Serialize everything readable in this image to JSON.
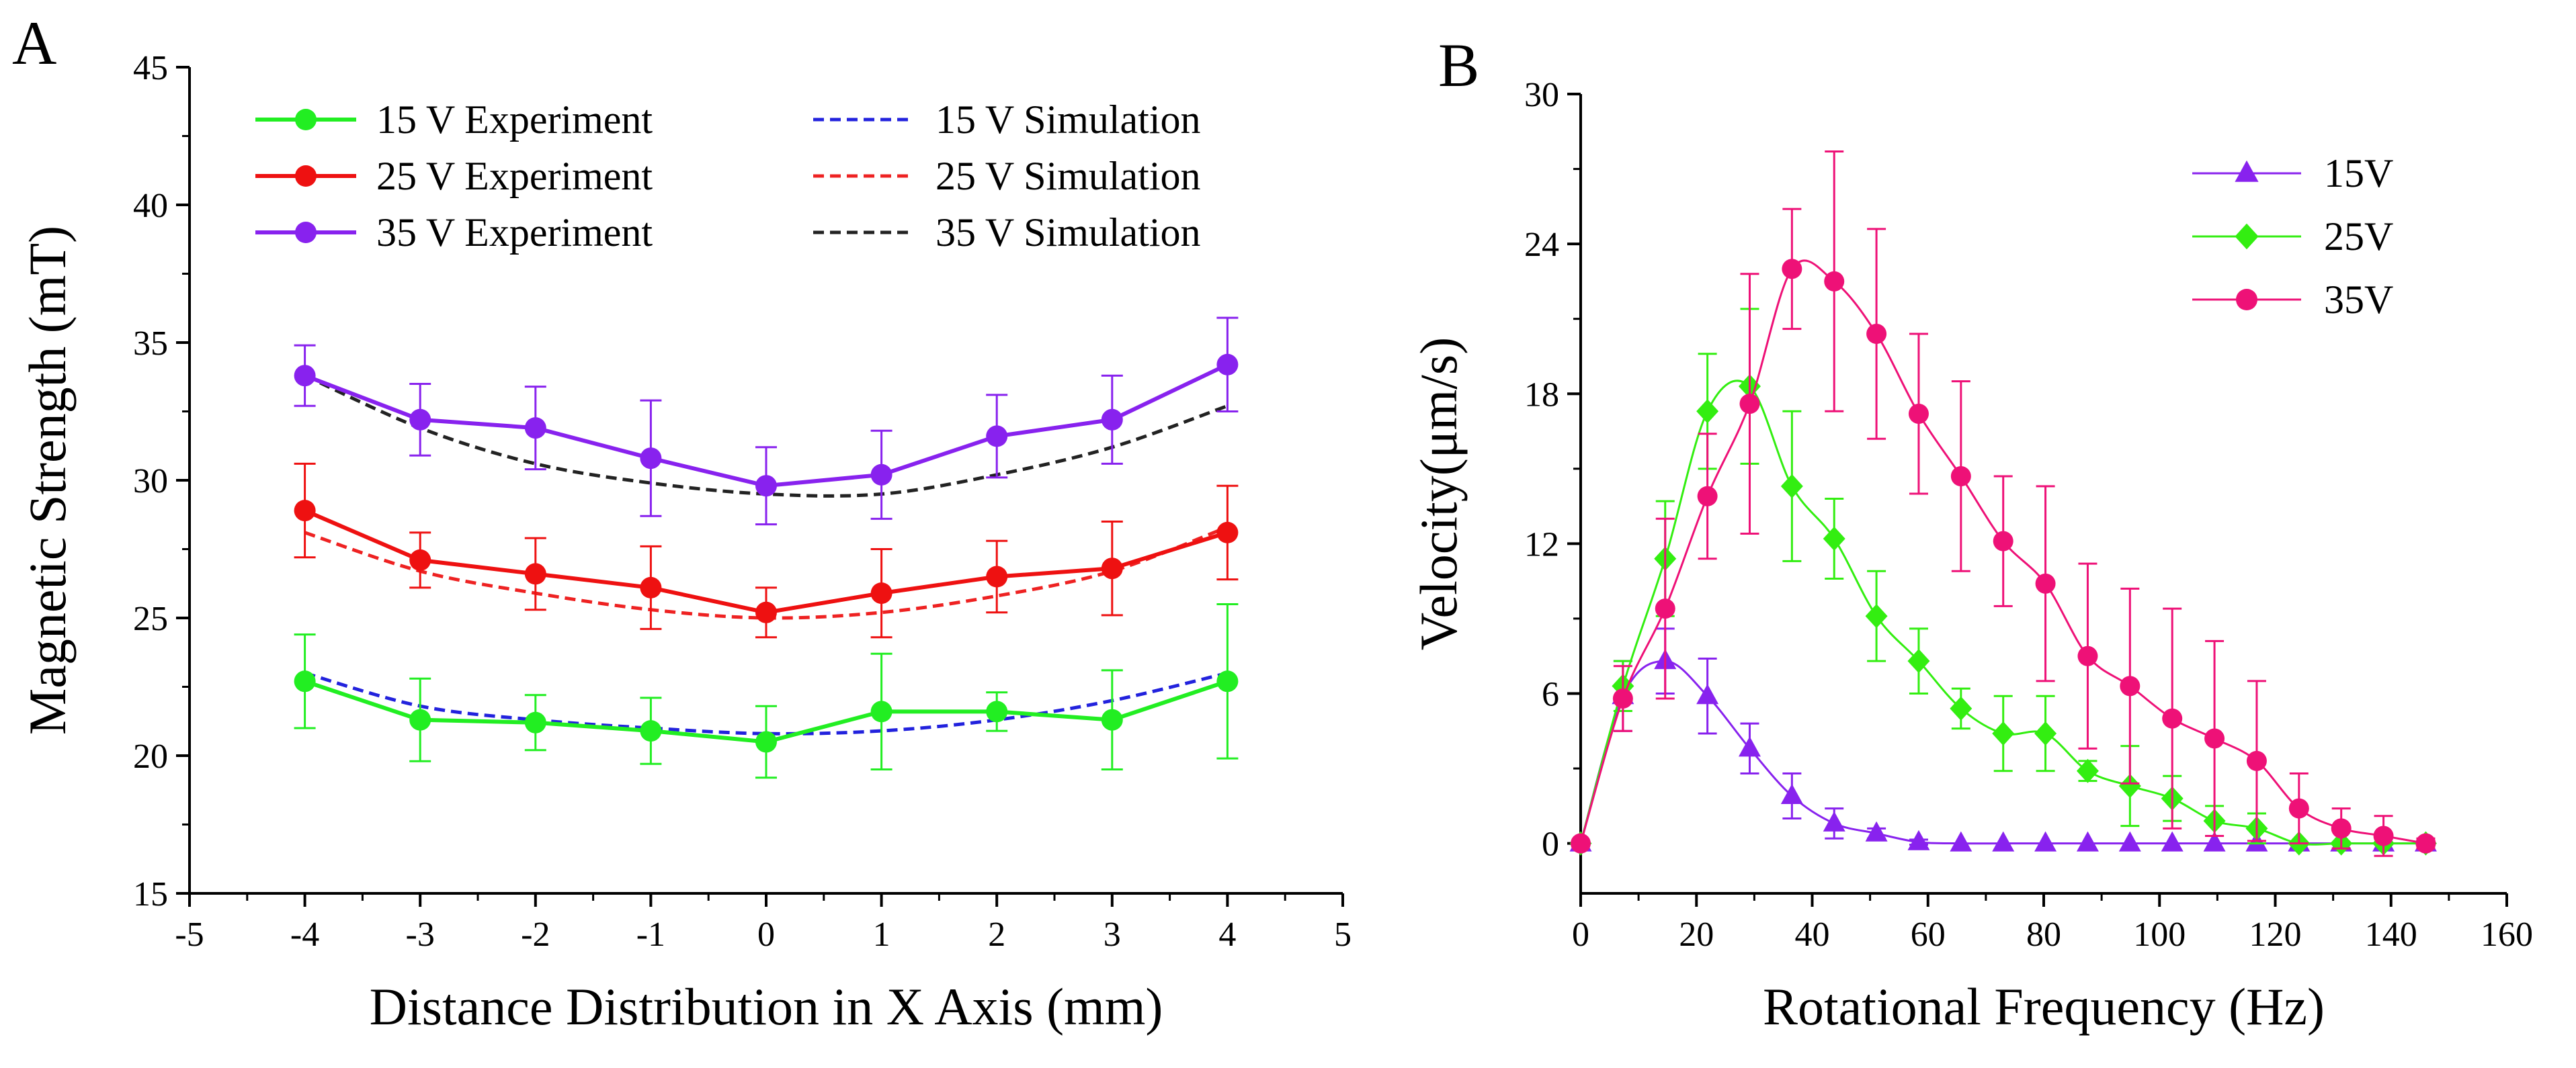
{
  "chart_data": [
    {
      "panel_label": "A",
      "type": "line",
      "title": "",
      "xlabel": "Distance Distribution in X Axis (mm)",
      "ylabel": "Magnetic Strength (mT)",
      "xlim": [
        -5,
        5
      ],
      "ylim": [
        15,
        45
      ],
      "xticks": [
        -5,
        -4,
        -3,
        -2,
        -1,
        0,
        1,
        2,
        3,
        4,
        5
      ],
      "yticks": [
        15,
        20,
        25,
        30,
        35,
        40,
        45
      ],
      "x": [
        -4,
        -3,
        -2,
        -1,
        0,
        1,
        2,
        3,
        4
      ],
      "legend_position": "top",
      "series": [
        {
          "name": "15 V Experiment",
          "style": "solid-marker",
          "color": "#22ee22",
          "marker": "circle",
          "values": [
            22.7,
            21.3,
            21.2,
            20.9,
            20.5,
            21.6,
            21.6,
            21.3,
            22.7
          ],
          "errors": [
            1.7,
            1.5,
            1.0,
            1.2,
            1.3,
            2.1,
            0.7,
            1.8,
            2.8
          ]
        },
        {
          "name": "25 V Experiment",
          "style": "solid-marker",
          "color": "#ee1111",
          "marker": "circle",
          "values": [
            28.9,
            27.1,
            26.6,
            26.1,
            25.2,
            25.9,
            26.5,
            26.8,
            28.1
          ],
          "errors": [
            1.7,
            1.0,
            1.3,
            1.5,
            0.9,
            1.6,
            1.3,
            1.7,
            1.7
          ]
        },
        {
          "name": "35 V Experiment",
          "style": "solid-marker",
          "color": "#8822ee",
          "marker": "circle",
          "values": [
            33.8,
            32.2,
            31.9,
            30.8,
            29.8,
            30.2,
            31.6,
            32.2,
            34.2
          ],
          "errors": [
            1.1,
            1.3,
            1.5,
            2.1,
            1.4,
            1.6,
            1.5,
            1.6,
            1.7
          ]
        },
        {
          "name": "15 V Simulation",
          "style": "dashed",
          "color": "#2222dd",
          "values": [
            23.0,
            21.8,
            21.3,
            21.0,
            20.8,
            20.9,
            21.3,
            22.0,
            23.0
          ]
        },
        {
          "name": "25 V Simulation",
          "style": "dashed",
          "color": "#ee2222",
          "values": [
            28.1,
            26.7,
            25.9,
            25.3,
            25.0,
            25.2,
            25.8,
            26.7,
            28.3
          ]
        },
        {
          "name": "35 V Simulation",
          "style": "dashed",
          "color": "#222222",
          "values": [
            33.8,
            31.9,
            30.6,
            29.9,
            29.5,
            29.5,
            30.2,
            31.2,
            32.7
          ]
        }
      ]
    },
    {
      "panel_label": "B",
      "type": "line",
      "title": "",
      "xlabel": "Rotational Frequency (Hz)",
      "ylabel": "Velocity(μm/s)",
      "xlim": [
        0,
        160
      ],
      "ylim": [
        -2,
        30
      ],
      "xticks": [
        0,
        20,
        40,
        60,
        80,
        100,
        120,
        140,
        160
      ],
      "yticks": [
        0,
        6,
        12,
        18,
        24,
        30
      ],
      "x": [
        0,
        7.3,
        14.6,
        21.9,
        29.2,
        36.5,
        43.8,
        51.1,
        58.4,
        65.7,
        73,
        80.3,
        87.6,
        94.9,
        102.2,
        109.5,
        116.8,
        124.1,
        131.4,
        138.7,
        146
      ],
      "legend_position": "top-right",
      "series": [
        {
          "name": "15V",
          "color": "#8822ee",
          "marker": "triangle",
          "values": [
            0,
            5.9,
            7.3,
            5.9,
            3.8,
            1.9,
            0.8,
            0.4,
            0.05,
            0,
            0,
            0,
            0,
            0,
            0,
            0,
            0,
            0,
            0,
            0,
            0
          ],
          "errors": [
            0,
            1.4,
            1.3,
            1.5,
            1.0,
            0.9,
            0.6,
            0.2,
            0.1,
            0,
            0,
            0,
            0,
            0,
            0,
            0,
            0,
            0,
            0,
            0,
            0
          ]
        },
        {
          "name": "25V",
          "color": "#33ee11",
          "marker": "diamond",
          "values": [
            0,
            6.3,
            11.4,
            17.3,
            18.3,
            14.3,
            12.2,
            9.1,
            7.3,
            5.4,
            4.4,
            4.4,
            2.9,
            2.3,
            1.8,
            0.9,
            0.6,
            0,
            0,
            0,
            0
          ],
          "errors": [
            0,
            1.0,
            2.3,
            2.3,
            3.1,
            3.0,
            1.6,
            1.8,
            1.3,
            0.8,
            1.5,
            1.5,
            0.4,
            1.6,
            0.9,
            0.6,
            0.6,
            0,
            0,
            0,
            0
          ]
        },
        {
          "name": "35V",
          "color": "#ee1177",
          "marker": "circle",
          "values": [
            0,
            5.8,
            9.4,
            13.9,
            17.6,
            23.0,
            22.5,
            20.4,
            17.2,
            14.7,
            12.1,
            10.4,
            7.5,
            6.3,
            5.0,
            4.2,
            3.3,
            1.4,
            0.6,
            0.3,
            0
          ],
          "errors": [
            0,
            1.3,
            3.6,
            2.5,
            5.2,
            2.4,
            5.2,
            4.2,
            3.2,
            3.8,
            2.6,
            3.9,
            3.7,
            3.9,
            4.4,
            3.9,
            3.2,
            1.4,
            0.8,
            0.8,
            0.2
          ]
        }
      ]
    }
  ]
}
